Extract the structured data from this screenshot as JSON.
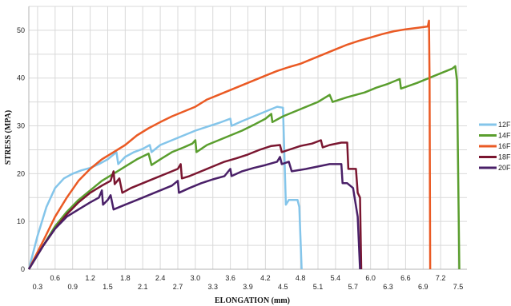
{
  "chart_data": {
    "type": "line",
    "xlabel": "ELONGATION (mm)",
    "ylabel": "STRESS (MPA)",
    "xlim": [
      0.15,
      7.65
    ],
    "ylim": [
      0,
      55
    ],
    "x_ticks_lower": [
      "0.3",
      "0.9",
      "1.5",
      "2.1",
      "2.7",
      "3.3",
      "3.9",
      "4.5",
      "5.1",
      "5.7",
      "6.3",
      "6.9",
      "7.5"
    ],
    "x_ticks_upper": [
      "0.6",
      "1.2",
      "1.8",
      "2.4",
      "3.0",
      "3.6",
      "4.2",
      "4.8",
      "5.4",
      "6.0",
      "6.6",
      "7.2"
    ],
    "y_ticks": [
      "0",
      "10",
      "20",
      "30",
      "40",
      "50"
    ],
    "grid": true,
    "legend": "right",
    "series": [
      {
        "name": "12F",
        "color": "#84c5ea",
        "points": [
          [
            0.15,
            0
          ],
          [
            0.3,
            7
          ],
          [
            0.45,
            13
          ],
          [
            0.6,
            17
          ],
          [
            0.75,
            19
          ],
          [
            0.9,
            20
          ],
          [
            1.05,
            20.7
          ],
          [
            1.2,
            21.2
          ],
          [
            1.35,
            22
          ],
          [
            1.5,
            23
          ],
          [
            1.65,
            24.5
          ],
          [
            1.68,
            22
          ],
          [
            1.8,
            23.5
          ],
          [
            1.95,
            24.5
          ],
          [
            2.1,
            25.2
          ],
          [
            2.22,
            26
          ],
          [
            2.25,
            24.5
          ],
          [
            2.4,
            26
          ],
          [
            2.6,
            27
          ],
          [
            2.8,
            28
          ],
          [
            3.0,
            29
          ],
          [
            3.2,
            29.8
          ],
          [
            3.4,
            30.6
          ],
          [
            3.6,
            31.5
          ],
          [
            3.62,
            30
          ],
          [
            3.8,
            31
          ],
          [
            4.0,
            32
          ],
          [
            4.2,
            33
          ],
          [
            4.4,
            34
          ],
          [
            4.5,
            33.8
          ],
          [
            4.52,
            26
          ],
          [
            4.55,
            13.5
          ],
          [
            4.6,
            14.5
          ],
          [
            4.75,
            14.5
          ],
          [
            4.78,
            13
          ],
          [
            4.82,
            0
          ]
        ]
      },
      {
        "name": "14F",
        "color": "#5a9e2e",
        "points": [
          [
            0.15,
            0
          ],
          [
            0.4,
            5
          ],
          [
            0.6,
            9
          ],
          [
            0.8,
            12
          ],
          [
            1.0,
            14.5
          ],
          [
            1.2,
            16.5
          ],
          [
            1.4,
            18.5
          ],
          [
            1.6,
            20
          ],
          [
            1.8,
            21.5
          ],
          [
            2.0,
            23
          ],
          [
            2.2,
            24.2
          ],
          [
            2.25,
            21.8
          ],
          [
            2.4,
            23
          ],
          [
            2.6,
            24.5
          ],
          [
            2.8,
            25.5
          ],
          [
            2.95,
            26.3
          ],
          [
            3.0,
            27
          ],
          [
            3.02,
            24.5
          ],
          [
            3.2,
            26
          ],
          [
            3.4,
            27
          ],
          [
            3.6,
            28
          ],
          [
            3.8,
            29
          ],
          [
            4.0,
            30.2
          ],
          [
            4.2,
            31.5
          ],
          [
            4.3,
            32.5
          ],
          [
            4.32,
            30.8
          ],
          [
            4.5,
            32
          ],
          [
            4.8,
            33.5
          ],
          [
            5.1,
            35
          ],
          [
            5.3,
            36.5
          ],
          [
            5.35,
            35
          ],
          [
            5.6,
            36
          ],
          [
            5.9,
            37
          ],
          [
            6.1,
            38
          ],
          [
            6.3,
            38.8
          ],
          [
            6.5,
            39.8
          ],
          [
            6.52,
            37.8
          ],
          [
            6.8,
            39
          ],
          [
            7.1,
            40.5
          ],
          [
            7.4,
            42
          ],
          [
            7.45,
            42.5
          ],
          [
            7.48,
            39.5
          ],
          [
            7.52,
            0
          ]
        ]
      },
      {
        "name": "16F",
        "color": "#ea5a24",
        "points": [
          [
            0.15,
            0
          ],
          [
            0.4,
            6
          ],
          [
            0.6,
            11
          ],
          [
            0.8,
            15
          ],
          [
            1.0,
            18.5
          ],
          [
            1.2,
            21
          ],
          [
            1.4,
            23
          ],
          [
            1.6,
            24.5
          ],
          [
            1.8,
            26
          ],
          [
            2.0,
            28
          ],
          [
            2.2,
            29.5
          ],
          [
            2.4,
            30.8
          ],
          [
            2.6,
            32
          ],
          [
            2.8,
            33
          ],
          [
            3.0,
            34
          ],
          [
            3.2,
            35.5
          ],
          [
            3.4,
            36.5
          ],
          [
            3.6,
            37.5
          ],
          [
            3.8,
            38.5
          ],
          [
            4.0,
            39.5
          ],
          [
            4.2,
            40.5
          ],
          [
            4.4,
            41.5
          ],
          [
            4.6,
            42.3
          ],
          [
            4.8,
            43
          ],
          [
            5.0,
            44
          ],
          [
            5.2,
            45
          ],
          [
            5.4,
            46
          ],
          [
            5.6,
            47
          ],
          [
            5.8,
            47.8
          ],
          [
            6.0,
            48.5
          ],
          [
            6.2,
            49.2
          ],
          [
            6.4,
            49.8
          ],
          [
            6.6,
            50.2
          ],
          [
            6.8,
            50.5
          ],
          [
            6.98,
            50.8
          ],
          [
            7.0,
            52
          ],
          [
            7.01,
            40
          ],
          [
            7.02,
            0
          ]
        ]
      },
      {
        "name": "18F",
        "color": "#7a1630",
        "points": [
          [
            0.15,
            0
          ],
          [
            0.4,
            5
          ],
          [
            0.6,
            8.5
          ],
          [
            0.8,
            11.5
          ],
          [
            1.0,
            14
          ],
          [
            1.2,
            16
          ],
          [
            1.4,
            17.5
          ],
          [
            1.55,
            18.5
          ],
          [
            1.6,
            20.5
          ],
          [
            1.62,
            17.8
          ],
          [
            1.7,
            19
          ],
          [
            1.75,
            16
          ],
          [
            1.9,
            17
          ],
          [
            2.1,
            18
          ],
          [
            2.3,
            19
          ],
          [
            2.5,
            20
          ],
          [
            2.7,
            21
          ],
          [
            2.75,
            22
          ],
          [
            2.77,
            19
          ],
          [
            2.9,
            19.5
          ],
          [
            3.1,
            20.5
          ],
          [
            3.3,
            21.5
          ],
          [
            3.5,
            22.5
          ],
          [
            3.7,
            23.2
          ],
          [
            3.9,
            24
          ],
          [
            4.1,
            25
          ],
          [
            4.3,
            25.8
          ],
          [
            4.45,
            26
          ],
          [
            4.48,
            24.5
          ],
          [
            4.6,
            25
          ],
          [
            4.8,
            25.8
          ],
          [
            5.0,
            26.3
          ],
          [
            5.15,
            27
          ],
          [
            5.18,
            25.5
          ],
          [
            5.3,
            26
          ],
          [
            5.5,
            26.5
          ],
          [
            5.6,
            26.5
          ],
          [
            5.62,
            21
          ],
          [
            5.75,
            21
          ],
          [
            5.78,
            16
          ],
          [
            5.82,
            15
          ],
          [
            5.84,
            0
          ]
        ]
      },
      {
        "name": "20F",
        "color": "#4a2068",
        "points": [
          [
            0.15,
            0
          ],
          [
            0.4,
            5
          ],
          [
            0.6,
            8.5
          ],
          [
            0.8,
            11
          ],
          [
            1.0,
            12.5
          ],
          [
            1.2,
            14
          ],
          [
            1.35,
            15
          ],
          [
            1.4,
            16.5
          ],
          [
            1.42,
            13.5
          ],
          [
            1.5,
            14.5
          ],
          [
            1.55,
            15.5
          ],
          [
            1.6,
            12.5
          ],
          [
            1.8,
            13.5
          ],
          [
            2.0,
            14.5
          ],
          [
            2.2,
            15.5
          ],
          [
            2.4,
            16.5
          ],
          [
            2.6,
            17.5
          ],
          [
            2.7,
            18.5
          ],
          [
            2.72,
            16
          ],
          [
            2.9,
            17
          ],
          [
            3.1,
            18
          ],
          [
            3.3,
            18.8
          ],
          [
            3.5,
            19.5
          ],
          [
            3.6,
            21
          ],
          [
            3.62,
            19.5
          ],
          [
            3.8,
            20.5
          ],
          [
            4.0,
            21.2
          ],
          [
            4.2,
            21.8
          ],
          [
            4.4,
            22.5
          ],
          [
            4.45,
            23.5
          ],
          [
            4.48,
            22
          ],
          [
            4.6,
            22.5
          ],
          [
            4.65,
            20.5
          ],
          [
            4.9,
            21
          ],
          [
            5.1,
            21.5
          ],
          [
            5.3,
            22
          ],
          [
            5.5,
            22
          ],
          [
            5.52,
            18
          ],
          [
            5.6,
            18
          ],
          [
            5.7,
            17
          ],
          [
            5.78,
            11
          ],
          [
            5.82,
            0
          ]
        ]
      }
    ]
  }
}
